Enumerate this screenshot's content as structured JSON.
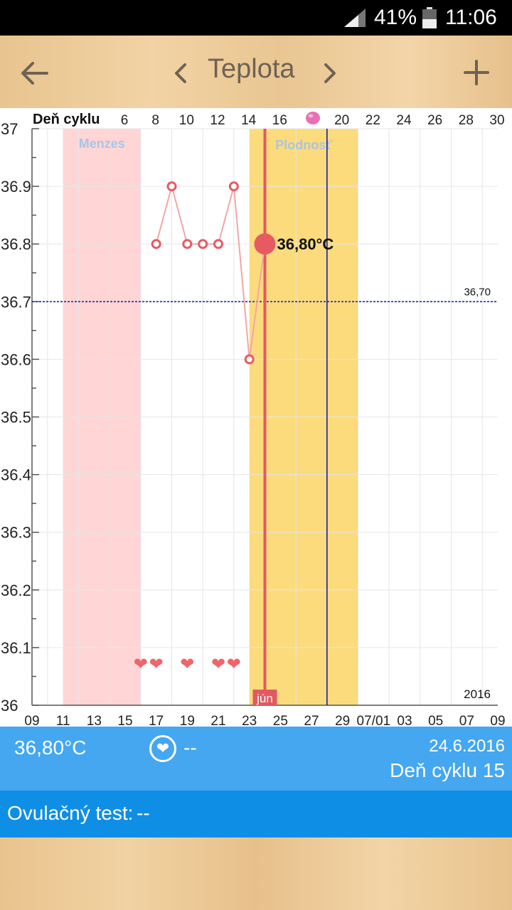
{
  "status_bar": {
    "battery_percent": "41%",
    "time": "11:06",
    "icons": [
      "signal-icon",
      "battery-icon"
    ]
  },
  "toolbar": {
    "title": "Teplota",
    "icons": [
      "back-arrow-icon",
      "chevron-left-icon",
      "chevron-right-icon",
      "add-icon"
    ]
  },
  "chart_data": {
    "type": "line",
    "top_axis_label": "Deň cyklu",
    "top_ticks": [
      "6",
      "8",
      "10",
      "12",
      "14",
      "16",
      "20",
      "22",
      "24",
      "26",
      "28",
      "30"
    ],
    "bottom_ticks": [
      "09",
      "11",
      "13",
      "15",
      "17",
      "19",
      "21",
      "23",
      "25",
      "27",
      "29",
      "07/01",
      "03",
      "05",
      "07",
      "09"
    ],
    "y_ticks": [
      "37",
      "36.9",
      "36.8",
      "36.7",
      "36.6",
      "36.5",
      "36.4",
      "36.3",
      "36.2",
      "36.1",
      "36"
    ],
    "ylim": [
      36.0,
      37.0
    ],
    "xlim": [
      0,
      30
    ],
    "grid": true,
    "menses_label": "Menzes",
    "fertile_label": "Plodnosť",
    "menses_range": [
      2,
      7
    ],
    "fertile_range": [
      14,
      21
    ],
    "ovulation_day": 19,
    "selected_day": 15,
    "selected_temp": 36.8,
    "selected_label": "36,80°C",
    "coverline": 36.7,
    "coverline_label": "36,70",
    "month_label": "jún",
    "year_label": "2016",
    "series": [
      {
        "x": [
          8,
          9,
          10,
          11,
          12,
          13,
          14,
          15
        ],
        "y": [
          36.8,
          36.9,
          36.8,
          36.8,
          36.8,
          36.9,
          36.6,
          36.8
        ]
      }
    ],
    "intercourse_days": [
      7,
      8,
      10,
      12,
      13
    ],
    "colors": {
      "menses": "#ffd5d5",
      "fertile": "#fbdb7c",
      "line": "#f2a7a7",
      "marker": "#e85a62",
      "selected_line": "#e05a5f",
      "ovulation_line": "#1a1aa6",
      "coverline": "#1a2aa0"
    }
  },
  "info": {
    "temperature": "36,80°C",
    "intercourse_value": "--",
    "date": "24.6.2016",
    "cycle_day": "Deň cyklu 15",
    "icons": [
      "heart-icon"
    ]
  },
  "ovulation": {
    "label": "Ovulačný test:",
    "value": "--"
  }
}
